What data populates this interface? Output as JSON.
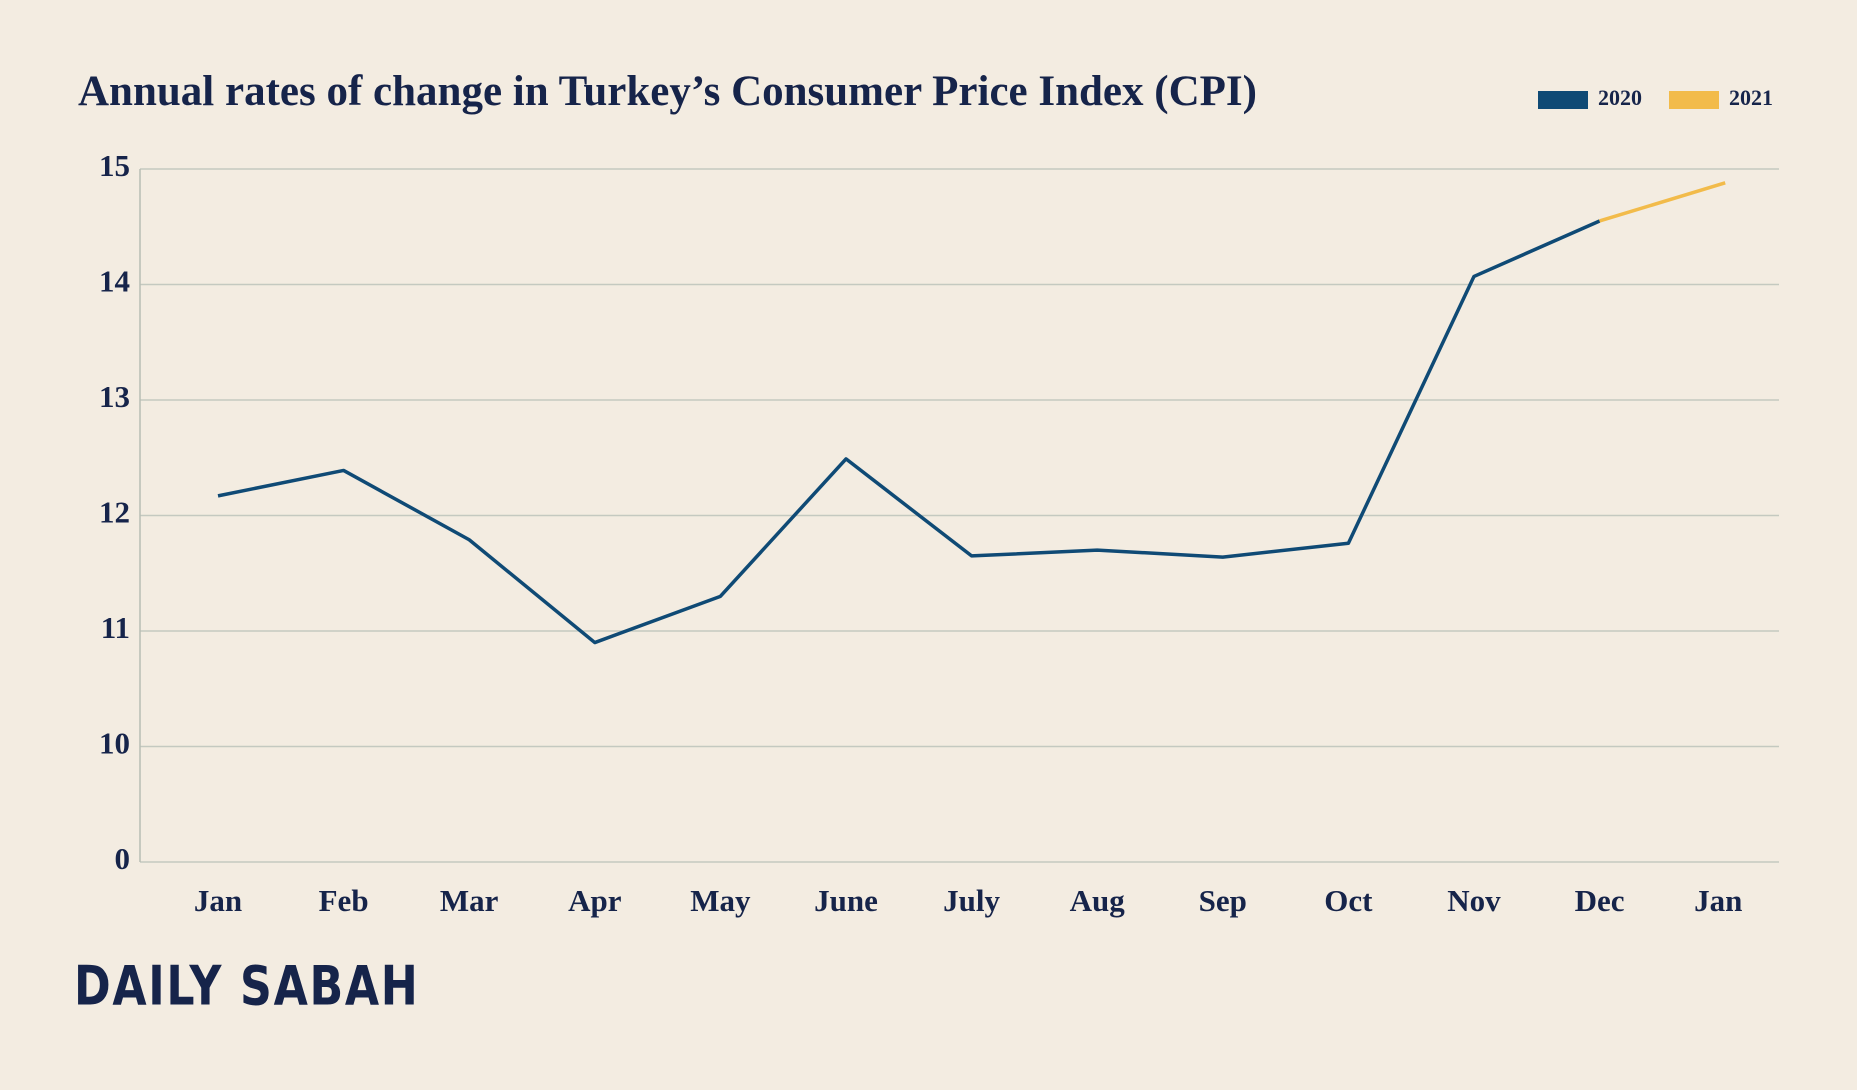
{
  "chart_data": {
    "type": "line",
    "title": "Annual rates of change in Turkey’s Consumer Price Index (CPI)",
    "categories": [
      "Jan",
      "Feb",
      "Mar",
      "Apr",
      "May",
      "June",
      "July",
      "Aug",
      "Sep",
      "Oct",
      "Nov",
      "Dec",
      "Jan"
    ],
    "series": [
      {
        "name": "2020",
        "color": "#0f4a75",
        "values": [
          12.17,
          12.39,
          11.79,
          10.9,
          11.3,
          12.49,
          11.65,
          11.7,
          11.64,
          11.76,
          14.07,
          14.55,
          null
        ]
      },
      {
        "name": "2021",
        "color": "#f2bb4a",
        "values": [
          null,
          null,
          null,
          null,
          null,
          null,
          null,
          null,
          null,
          null,
          null,
          14.55,
          14.88
        ]
      }
    ],
    "ylim": [
      0,
      15
    ],
    "yticks": [
      0,
      10,
      11,
      12,
      13,
      14,
      15
    ],
    "axis_break": [
      0,
      10
    ],
    "grid": true,
    "legend": "top-right"
  },
  "footer": {
    "logo": "DAILY SABAH"
  }
}
